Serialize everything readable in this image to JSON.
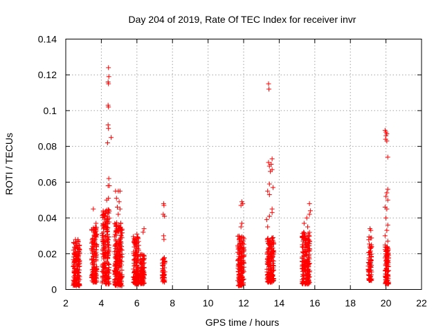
{
  "chart_data": {
    "type": "scatter",
    "title": "Day 204 of 2019, Rate Of TEC Index for receiver invr",
    "xlabel": "GPS time / hours",
    "ylabel": "ROTI / TECUs",
    "xlim": [
      2,
      22
    ],
    "ylim": [
      0,
      0.14
    ],
    "xticks": [
      2,
      4,
      6,
      8,
      10,
      12,
      14,
      16,
      18,
      20,
      22
    ],
    "yticks": [
      0,
      0.02,
      0.04,
      0.06,
      0.08,
      0.1,
      0.12,
      0.14
    ],
    "xtick_labels": [
      "2",
      "4",
      "6",
      "8",
      "10",
      "12",
      "14",
      "16",
      "18",
      "20",
      "22"
    ],
    "ytick_labels": [
      "0",
      "0.02",
      "0.04",
      "0.06",
      "0.08",
      "0.1",
      "0.12",
      "0.14"
    ],
    "grid": true,
    "marker": "+",
    "color": "#ff0000",
    "clusters": [
      {
        "x_center": 2.6,
        "x_spread": 0.18,
        "y_min": 0.002,
        "y_max": 0.028,
        "count": 160
      },
      {
        "x_center": 3.6,
        "x_spread": 0.15,
        "y_min": 0.004,
        "y_max": 0.035,
        "count": 140
      },
      {
        "x_center": 4.25,
        "x_spread": 0.2,
        "y_min": 0.003,
        "y_max": 0.045,
        "count": 200
      },
      {
        "x_center": 4.95,
        "x_spread": 0.22,
        "y_min": 0.002,
        "y_max": 0.038,
        "count": 220
      },
      {
        "x_center": 5.95,
        "x_spread": 0.16,
        "y_min": 0.003,
        "y_max": 0.03,
        "count": 150
      },
      {
        "x_center": 6.3,
        "x_spread": 0.12,
        "y_min": 0.003,
        "y_max": 0.02,
        "count": 90
      },
      {
        "x_center": 7.5,
        "x_spread": 0.08,
        "y_min": 0.004,
        "y_max": 0.018,
        "count": 45
      },
      {
        "x_center": 11.85,
        "x_spread": 0.18,
        "y_min": 0.002,
        "y_max": 0.03,
        "count": 160
      },
      {
        "x_center": 13.5,
        "x_spread": 0.2,
        "y_min": 0.004,
        "y_max": 0.03,
        "count": 170
      },
      {
        "x_center": 15.5,
        "x_spread": 0.22,
        "y_min": 0.003,
        "y_max": 0.032,
        "count": 190
      },
      {
        "x_center": 19.1,
        "x_spread": 0.1,
        "y_min": 0.005,
        "y_max": 0.03,
        "count": 70
      },
      {
        "x_center": 20.05,
        "x_spread": 0.1,
        "y_min": 0.003,
        "y_max": 0.025,
        "count": 100
      }
    ],
    "outliers": [
      {
        "x": 4.4,
        "y": 0.124
      },
      {
        "x": 4.42,
        "y": 0.119
      },
      {
        "x": 4.38,
        "y": 0.116
      },
      {
        "x": 4.4,
        "y": 0.115
      },
      {
        "x": 4.38,
        "y": 0.103
      },
      {
        "x": 4.4,
        "y": 0.102
      },
      {
        "x": 4.38,
        "y": 0.092
      },
      {
        "x": 4.4,
        "y": 0.09
      },
      {
        "x": 4.55,
        "y": 0.085
      },
      {
        "x": 4.35,
        "y": 0.082
      },
      {
        "x": 4.42,
        "y": 0.062
      },
      {
        "x": 4.38,
        "y": 0.058
      },
      {
        "x": 4.45,
        "y": 0.058
      },
      {
        "x": 4.4,
        "y": 0.051
      },
      {
        "x": 4.3,
        "y": 0.05
      },
      {
        "x": 3.55,
        "y": 0.045
      },
      {
        "x": 3.7,
        "y": 0.037
      },
      {
        "x": 4.8,
        "y": 0.055
      },
      {
        "x": 4.95,
        "y": 0.055
      },
      {
        "x": 5.05,
        "y": 0.055
      },
      {
        "x": 4.85,
        "y": 0.051
      },
      {
        "x": 5.0,
        "y": 0.049
      },
      {
        "x": 4.9,
        "y": 0.046
      },
      {
        "x": 5.05,
        "y": 0.045
      },
      {
        "x": 4.95,
        "y": 0.042
      },
      {
        "x": 6.4,
        "y": 0.034
      },
      {
        "x": 6.35,
        "y": 0.032
      },
      {
        "x": 6.0,
        "y": 0.031
      },
      {
        "x": 7.5,
        "y": 0.048
      },
      {
        "x": 7.52,
        "y": 0.047
      },
      {
        "x": 7.48,
        "y": 0.042
      },
      {
        "x": 7.55,
        "y": 0.041
      },
      {
        "x": 7.5,
        "y": 0.03
      },
      {
        "x": 7.52,
        "y": 0.028
      },
      {
        "x": 11.9,
        "y": 0.049
      },
      {
        "x": 11.95,
        "y": 0.048
      },
      {
        "x": 11.85,
        "y": 0.047
      },
      {
        "x": 11.9,
        "y": 0.037
      },
      {
        "x": 11.85,
        "y": 0.035
      },
      {
        "x": 13.4,
        "y": 0.115
      },
      {
        "x": 13.42,
        "y": 0.112
      },
      {
        "x": 13.4,
        "y": 0.071
      },
      {
        "x": 13.6,
        "y": 0.073
      },
      {
        "x": 13.55,
        "y": 0.07
      },
      {
        "x": 13.45,
        "y": 0.069
      },
      {
        "x": 13.6,
        "y": 0.067
      },
      {
        "x": 13.5,
        "y": 0.066
      },
      {
        "x": 13.45,
        "y": 0.059
      },
      {
        "x": 13.65,
        "y": 0.057
      },
      {
        "x": 13.35,
        "y": 0.055
      },
      {
        "x": 13.45,
        "y": 0.053
      },
      {
        "x": 13.6,
        "y": 0.045
      },
      {
        "x": 13.6,
        "y": 0.043
      },
      {
        "x": 13.45,
        "y": 0.041
      },
      {
        "x": 13.3,
        "y": 0.039
      },
      {
        "x": 13.35,
        "y": 0.035
      },
      {
        "x": 15.7,
        "y": 0.048
      },
      {
        "x": 15.75,
        "y": 0.044
      },
      {
        "x": 15.7,
        "y": 0.042
      },
      {
        "x": 15.55,
        "y": 0.04
      },
      {
        "x": 15.4,
        "y": 0.037
      },
      {
        "x": 15.6,
        "y": 0.035
      },
      {
        "x": 19.1,
        "y": 0.034
      },
      {
        "x": 19.15,
        "y": 0.033
      },
      {
        "x": 19.95,
        "y": 0.089
      },
      {
        "x": 20.0,
        "y": 0.088
      },
      {
        "x": 20.05,
        "y": 0.087
      },
      {
        "x": 20.0,
        "y": 0.086
      },
      {
        "x": 19.98,
        "y": 0.084
      },
      {
        "x": 20.05,
        "y": 0.083
      },
      {
        "x": 20.1,
        "y": 0.074
      },
      {
        "x": 20.1,
        "y": 0.056
      },
      {
        "x": 20.05,
        "y": 0.054
      },
      {
        "x": 20.0,
        "y": 0.052
      },
      {
        "x": 20.1,
        "y": 0.05
      },
      {
        "x": 19.95,
        "y": 0.046
      },
      {
        "x": 20.05,
        "y": 0.045
      },
      {
        "x": 20.0,
        "y": 0.04
      },
      {
        "x": 20.1,
        "y": 0.036
      },
      {
        "x": 20.05,
        "y": 0.033
      },
      {
        "x": 19.95,
        "y": 0.03
      },
      {
        "x": 20.1,
        "y": 0.027
      }
    ]
  }
}
